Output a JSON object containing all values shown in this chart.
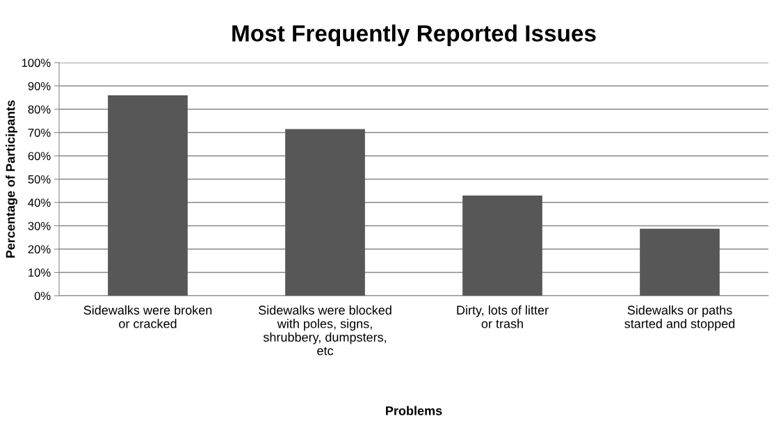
{
  "chart_data": {
    "type": "bar",
    "title": "Most Frequently Reported Issues",
    "xlabel": "Problems",
    "ylabel": "Percentage of Participants",
    "categories": [
      "Sidewalks were broken or cracked",
      "Sidewalks were blocked with poles, signs, shrubbery, dumpsters, etc",
      "Dirty, lots of litter or trash",
      "Sidewalks or paths started and stopped"
    ],
    "values": [
      86,
      71.5,
      43,
      28.7
    ],
    "color": "#575757",
    "ylim": [
      0,
      100
    ],
    "yticks": [
      {
        "value": 0,
        "label": "0%"
      },
      {
        "value": 10,
        "label": "10%"
      },
      {
        "value": 20,
        "label": "20%"
      },
      {
        "value": 30,
        "label": "30%"
      },
      {
        "value": 40,
        "label": "40%"
      },
      {
        "value": 50,
        "label": "50%"
      },
      {
        "value": 60,
        "label": "60%"
      },
      {
        "value": 70,
        "label": "70%"
      },
      {
        "value": 80,
        "label": "80%"
      },
      {
        "value": 90,
        "label": "90%"
      },
      {
        "value": 100,
        "label": "100%"
      }
    ],
    "grid": "y"
  }
}
